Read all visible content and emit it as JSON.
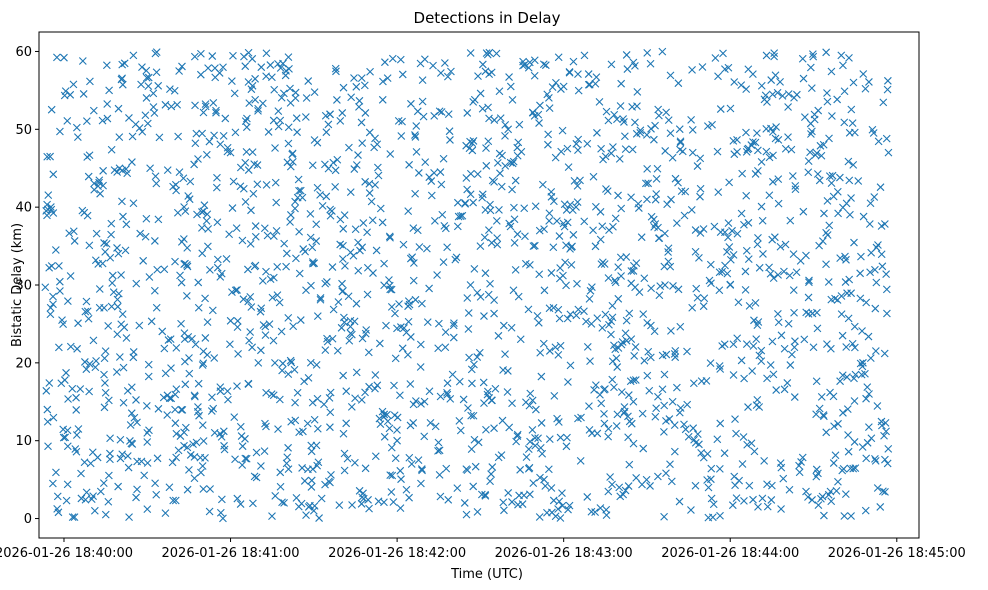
{
  "chart_data": {
    "type": "scatter",
    "title": "Detections in Delay",
    "xlabel": "Time (UTC)",
    "ylabel": "Bistatic Delay (km)",
    "marker": "x",
    "color": "#1f77b4",
    "grid": false,
    "legend": "none",
    "xlim": [
      "2026-01-26 18:39:51",
      "2026-01-26 18:45:08"
    ],
    "ylim": [
      -2.5,
      62.5
    ],
    "x_ticks": [
      "2026-01-26 18:40:00",
      "2026-01-26 18:41:00",
      "2026-01-26 18:42:00",
      "2026-01-26 18:43:00",
      "2026-01-26 18:44:00",
      "2026-01-26 18:45:00"
    ],
    "y_ticks": [
      0,
      10,
      20,
      30,
      40,
      50,
      60
    ],
    "x_range": [
      "2026-01-26 18:39:53",
      "2026-01-26 18:44:57"
    ],
    "y_range": [
      0,
      60
    ],
    "approx_point_count": 2000,
    "points": [
      {
        "x": "2026-01-26 18:39:54",
        "y": 14.0
      },
      {
        "x": "2026-01-26 18:39:55",
        "y": 46.5
      },
      {
        "x": "2026-01-26 18:39:56",
        "y": 4.5
      },
      {
        "x": "2026-01-26 18:39:58",
        "y": 0.8
      },
      {
        "x": "2026-01-26 18:40:00",
        "y": 59.2
      },
      {
        "x": "2026-01-26 18:40:05",
        "y": 49.0
      },
      {
        "x": "2026-01-26 18:40:10",
        "y": 2.5
      },
      {
        "x": "2026-01-26 18:40:15",
        "y": 21.5
      },
      {
        "x": "2026-01-26 18:40:20",
        "y": 45.0
      },
      {
        "x": "2026-01-26 18:40:25",
        "y": 59.5
      },
      {
        "x": "2026-01-26 18:40:30",
        "y": 11.0
      },
      {
        "x": "2026-01-26 18:40:40",
        "y": 33.0
      },
      {
        "x": "2026-01-26 18:40:50",
        "y": 12.0
      },
      {
        "x": "2026-01-26 18:41:00",
        "y": 47.0
      },
      {
        "x": "2026-01-26 18:41:10",
        "y": 20.0
      },
      {
        "x": "2026-01-26 18:41:20",
        "y": 57.5
      },
      {
        "x": "2026-01-26 18:41:30",
        "y": 1.0
      },
      {
        "x": "2026-01-26 18:41:40",
        "y": 24.5
      },
      {
        "x": "2026-01-26 18:41:50",
        "y": 43.0
      },
      {
        "x": "2026-01-26 18:42:00",
        "y": 10.0
      },
      {
        "x": "2026-01-26 18:42:10",
        "y": 59.0
      },
      {
        "x": "2026-01-26 18:42:20",
        "y": 18.5
      },
      {
        "x": "2026-01-26 18:42:25",
        "y": 0.5
      },
      {
        "x": "2026-01-26 18:42:30",
        "y": 35.0
      },
      {
        "x": "2026-01-26 18:42:40",
        "y": 50.0
      },
      {
        "x": "2026-01-26 18:42:50",
        "y": 14.0
      },
      {
        "x": "2026-01-26 18:43:00",
        "y": 55.5
      },
      {
        "x": "2026-01-26 18:43:10",
        "y": 25.0
      },
      {
        "x": "2026-01-26 18:43:20",
        "y": 4.0
      },
      {
        "x": "2026-01-26 18:43:30",
        "y": 41.0
      },
      {
        "x": "2026-01-26 18:43:40",
        "y": 12.0
      },
      {
        "x": "2026-01-26 18:43:50",
        "y": 58.0
      },
      {
        "x": "2026-01-26 18:44:00",
        "y": 30.0
      },
      {
        "x": "2026-01-26 18:44:10",
        "y": 1.5
      },
      {
        "x": "2026-01-26 18:44:20",
        "y": 47.5
      },
      {
        "x": "2026-01-26 18:44:30",
        "y": 22.0
      },
      {
        "x": "2026-01-26 18:44:40",
        "y": 59.5
      },
      {
        "x": "2026-01-26 18:44:50",
        "y": 16.0
      },
      {
        "x": "2026-01-26 18:44:55",
        "y": 3.5
      },
      {
        "x": "2026-01-26 18:44:57",
        "y": 47.0
      }
    ]
  }
}
